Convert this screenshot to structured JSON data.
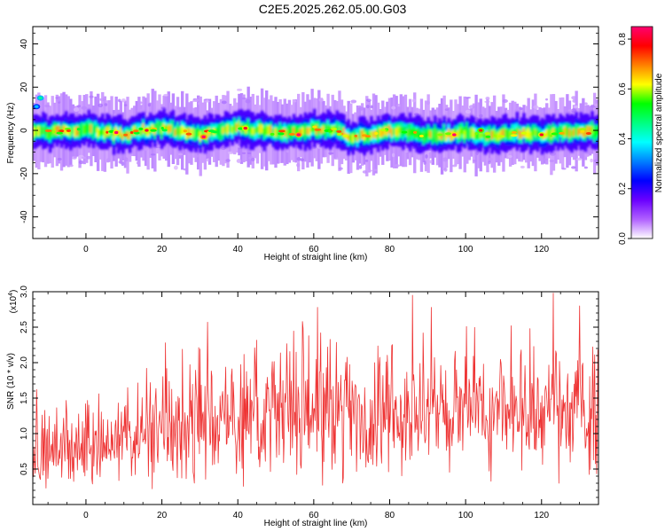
{
  "title": "C2E5.2025.262.05.00.G03",
  "chart_data": [
    {
      "type": "heatmap",
      "xlabel": "Height of straight line (km)",
      "ylabel": "Frequency (Hz)",
      "xlim": [
        -14,
        135
      ],
      "ylim": [
        -50,
        48
      ],
      "xticks": [
        0,
        20,
        40,
        60,
        80,
        100,
        120
      ],
      "xtick_labels": [
        "0",
        "20",
        "40",
        "60",
        "80",
        "100",
        "120"
      ],
      "yticks": [
        -40,
        -20,
        0,
        20,
        40
      ],
      "ytick_labels": [
        "-40",
        "-20",
        "0",
        "20",
        "40"
      ],
      "ridge": {
        "x": [
          -14,
          -10,
          -5,
          0,
          5,
          10,
          15,
          20,
          25,
          30,
          35,
          40,
          45,
          50,
          55,
          60,
          65,
          70,
          75,
          80,
          85,
          90,
          95,
          100,
          105,
          110,
          115,
          120,
          125,
          130,
          135
        ],
        "center_hz": [
          -1,
          -1,
          0,
          0,
          -1,
          -2,
          0,
          1,
          -1,
          -2,
          0,
          2,
          0,
          -1,
          -1,
          1,
          0,
          -3,
          -2,
          0,
          -1,
          -2,
          -2,
          -1,
          -2,
          -2,
          -1,
          -2,
          -1,
          0,
          -1
        ],
        "width_hz": 5
      },
      "hotspots": [
        {
          "x": -13,
          "y": 11,
          "amp": 0.35
        },
        {
          "x": -12,
          "y": 15,
          "amp": 0.45
        },
        {
          "x": 8,
          "y": -1,
          "amp": 0.85
        },
        {
          "x": 16,
          "y": 0,
          "amp": 0.8
        },
        {
          "x": 31,
          "y": -3,
          "amp": 0.9
        },
        {
          "x": 42,
          "y": 1,
          "amp": 0.8
        },
        {
          "x": 56,
          "y": -2,
          "amp": 0.9
        },
        {
          "x": 97,
          "y": -2,
          "amp": 0.85
        },
        {
          "x": 104,
          "y": 0,
          "amp": 0.75
        },
        {
          "x": 120,
          "y": -2,
          "amp": 0.8
        }
      ],
      "colorbar": {
        "label": "Normalized spectral amplitude",
        "range": [
          0.0,
          0.85
        ],
        "ticks": [
          0.0,
          0.2,
          0.4,
          0.6,
          0.8
        ],
        "tick_labels": [
          "0.0",
          "0.2",
          "0.4",
          "0.6",
          "0.8"
        ],
        "colors": [
          "#ffffff",
          "#b060ff",
          "#6a00ff",
          "#0000ff",
          "#0080ff",
          "#00ffff",
          "#00ff80",
          "#00ff00",
          "#ffff00",
          "#ff8000",
          "#ff0000",
          "#ff0070"
        ]
      }
    },
    {
      "type": "line",
      "xlabel": "Height of straight line (km)",
      "ylabel": "SNR (10 * v/v)",
      "multiplier_label": "(x10",
      "multiplier_exp": "4",
      "multiplier_close": ")",
      "xlim": [
        -14,
        135
      ],
      "ylim": [
        0,
        3.0
      ],
      "xticks": [
        0,
        20,
        40,
        60,
        80,
        100,
        120
      ],
      "xtick_labels": [
        "0",
        "20",
        "40",
        "60",
        "80",
        "100",
        "120"
      ],
      "yticks": [
        0.5,
        1.0,
        1.5,
        2.0,
        2.5,
        3.0
      ],
      "ytick_labels": [
        "0.5",
        "1.0",
        "1.5",
        "2.0",
        "2.5",
        "3.0"
      ],
      "series": [
        {
          "color": "#ee3333",
          "x_start": -14,
          "x_end": 135,
          "trend_x": [
            -14,
            0,
            20,
            40,
            60,
            80,
            100,
            120,
            135
          ],
          "trend_mean": [
            0.75,
            0.8,
            1.1,
            1.2,
            1.3,
            1.3,
            1.3,
            1.3,
            1.3
          ],
          "trend_spread": [
            0.35,
            0.4,
            0.55,
            0.6,
            0.65,
            0.65,
            0.65,
            0.65,
            0.65
          ],
          "peaks": [
            {
              "x": -13,
              "y": 1.62
            },
            {
              "x": 16,
              "y": 1.92
            },
            {
              "x": 21,
              "y": 2.28
            },
            {
              "x": 32,
              "y": 2.57
            },
            {
              "x": 57,
              "y": 2.58
            },
            {
              "x": 61,
              "y": 2.78
            },
            {
              "x": 86,
              "y": 2.95
            },
            {
              "x": 91,
              "y": 2.78
            },
            {
              "x": 112,
              "y": 2.52
            },
            {
              "x": 117,
              "y": 2.48
            },
            {
              "x": 123,
              "y": 2.98
            },
            {
              "x": 130,
              "y": 2.8
            }
          ]
        }
      ]
    }
  ]
}
